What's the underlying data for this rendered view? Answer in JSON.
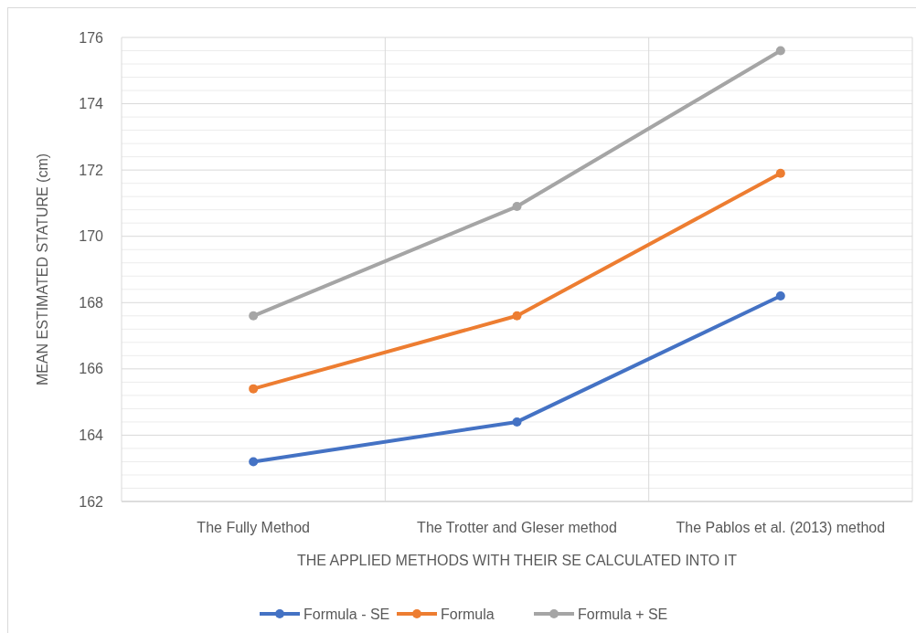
{
  "chart_data": {
    "type": "line",
    "categories": [
      "The Fully Method",
      "The Trotter and Gleser method",
      "The Pablos et al. (2013) method"
    ],
    "xlabel": "THE APPLIED METHODS WITH THEIR SE CALCULATED INTO IT",
    "ylabel": "MEAN ESTIMATED STATURE (cm)",
    "ylim": [
      162,
      176
    ],
    "yticks": [
      162,
      {
        "value": 162.4,
        "label": null
      },
      {
        "value": 162.8,
        "label": null
      },
      {
        "value": 163.2,
        "label": null
      },
      {
        "value": 163.6,
        "label": null
      },
      164,
      {
        "value": 164.4,
        "label": null
      },
      {
        "value": 164.8,
        "label": null
      },
      {
        "value": 165.2,
        "label": null
      },
      {
        "value": 165.6,
        "label": null
      },
      166,
      {
        "value": 166.4,
        "label": null
      },
      {
        "value": 166.8,
        "label": null
      },
      {
        "value": 167.2,
        "label": null
      },
      {
        "value": 167.6,
        "label": null
      },
      168,
      {
        "value": 168.4,
        "label": null
      },
      {
        "value": 168.8,
        "label": null
      },
      {
        "value": 169.2,
        "label": null
      },
      {
        "value": 169.6,
        "label": null
      },
      170,
      {
        "value": 170.4,
        "label": null
      },
      {
        "value": 170.8,
        "label": null
      },
      {
        "value": 171.2,
        "label": null
      },
      {
        "value": 171.6,
        "label": null
      },
      172,
      {
        "value": 172.4,
        "label": null
      },
      {
        "value": 172.8,
        "label": null
      },
      {
        "value": 173.2,
        "label": null
      },
      {
        "value": 173.6,
        "label": null
      },
      174,
      {
        "value": 174.4,
        "label": null
      },
      {
        "value": 174.8,
        "label": null
      },
      {
        "value": 175.2,
        "label": null
      },
      {
        "value": 175.6,
        "label": null
      },
      176
    ],
    "grid": true,
    "legend": "bottom",
    "marker": "circle",
    "line_style": "solid",
    "series": [
      {
        "name": "Formula - SE",
        "color": "#4472c4",
        "values": [
          163.2,
          164.4,
          168.2
        ]
      },
      {
        "name": "Formula",
        "color": "#ed7d31",
        "values": [
          165.4,
          167.6,
          171.9
        ]
      },
      {
        "name": "Formula + SE",
        "color": "#a5a5a5",
        "values": [
          167.6,
          170.9,
          175.6
        ]
      }
    ]
  }
}
